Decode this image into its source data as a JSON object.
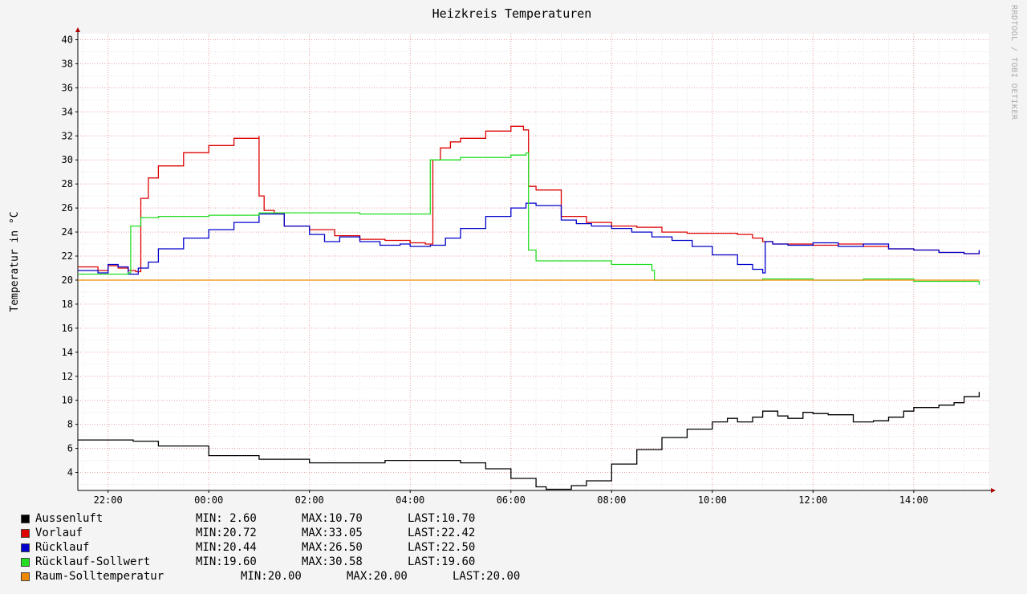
{
  "watermark": "RRDTOOL / TOBI OETIKER",
  "chart_data": {
    "type": "line",
    "title": "Heizkreis Temperaturen",
    "ylabel": "Temperatur in °C",
    "xlabel": "",
    "ylim": [
      2.5,
      40.5
    ],
    "xlim": [
      -2.6,
      15.5
    ],
    "yticks": [
      4,
      6,
      8,
      10,
      12,
      14,
      16,
      18,
      20,
      22,
      24,
      26,
      28,
      30,
      32,
      34,
      36,
      38,
      40
    ],
    "ytick_labels": [
      "4",
      "6",
      "8",
      "10",
      "12",
      "14",
      "16",
      "18",
      "20",
      "22",
      "24",
      "26",
      "28",
      "30",
      "32",
      "34",
      "36",
      "38",
      "40"
    ],
    "xticks": [
      -2,
      0,
      2,
      4,
      6,
      8,
      10,
      12,
      14
    ],
    "xtick_labels": [
      "22:00",
      "00:00",
      "02:00",
      "04:00",
      "06:00",
      "08:00",
      "10:00",
      "12:00",
      "14:00"
    ],
    "x_unit": "hours relative to 00:00",
    "grid": true,
    "legend_position": "bottom-left",
    "series": [
      {
        "name": "Aussenluft",
        "color": "#000000",
        "min": " 2.60",
        "max": "10.70",
        "last": "10.70",
        "x": [
          -2.6,
          -1.5,
          -1.0,
          0.0,
          1.0,
          2.0,
          3.0,
          3.5,
          4.0,
          4.6,
          5.0,
          5.5,
          6.0,
          6.5,
          6.7,
          7.2,
          7.5,
          8.0,
          8.5,
          9.0,
          9.5,
          10.0,
          10.3,
          10.5,
          10.8,
          11.0,
          11.3,
          11.5,
          11.8,
          12.0,
          12.3,
          12.8,
          13.2,
          13.5,
          13.8,
          14.0,
          14.5,
          14.8,
          15.0,
          15.3
        ],
        "y": [
          6.7,
          6.6,
          6.2,
          5.4,
          5.1,
          4.8,
          4.8,
          5.0,
          5.0,
          5.0,
          4.8,
          4.3,
          3.5,
          2.8,
          2.6,
          2.9,
          3.3,
          4.7,
          5.9,
          6.9,
          7.6,
          8.2,
          8.5,
          8.2,
          8.6,
          9.1,
          8.7,
          8.5,
          9.0,
          8.9,
          8.8,
          8.2,
          8.3,
          8.6,
          9.1,
          9.4,
          9.6,
          9.8,
          10.3,
          10.7
        ]
      },
      {
        "name": "Vorlauf",
        "color": "#dd0000",
        "min": "20.72",
        "max": "33.05",
        "last": "22.42",
        "x": [
          -2.6,
          -2.2,
          -2.0,
          -1.8,
          -1.6,
          -1.45,
          -1.35,
          -1.2,
          -1.0,
          -0.5,
          0.0,
          0.5,
          1.0,
          1.0,
          1.1,
          1.3,
          1.5,
          2.0,
          2.5,
          3.0,
          3.5,
          4.0,
          4.3,
          4.45,
          4.6,
          4.8,
          5.0,
          5.5,
          6.0,
          6.25,
          6.35,
          6.5,
          7.0,
          7.5,
          8.0,
          8.5,
          9.0,
          9.5,
          10.0,
          10.5,
          10.8,
          11.0,
          11.2,
          11.5,
          12.0,
          12.5,
          13.0,
          13.5,
          14.0,
          14.5,
          15.0,
          15.3
        ],
        "y": [
          21.1,
          20.8,
          21.2,
          21.0,
          20.8,
          20.7,
          26.8,
          28.5,
          29.5,
          30.6,
          31.2,
          31.8,
          32.0,
          27.0,
          25.8,
          25.6,
          24.5,
          24.2,
          23.7,
          23.4,
          23.3,
          23.1,
          23.0,
          30.0,
          31.0,
          31.5,
          31.8,
          32.4,
          32.8,
          32.5,
          27.8,
          27.5,
          25.3,
          24.8,
          24.5,
          24.4,
          24.0,
          23.9,
          23.9,
          23.8,
          23.5,
          23.2,
          23.0,
          23.0,
          22.9,
          23.0,
          22.8,
          22.6,
          22.5,
          22.3,
          22.2,
          22.4
        ]
      },
      {
        "name": "Rücklauf",
        "color": "#0000cc",
        "min": "20.44",
        "max": "26.50",
        "last": "22.50",
        "x": [
          -2.6,
          -2.2,
          -2.0,
          -1.8,
          -1.6,
          -1.4,
          -1.2,
          -1.0,
          -0.5,
          0.0,
          0.5,
          1.0,
          1.5,
          2.0,
          2.3,
          2.6,
          3.0,
          3.4,
          3.8,
          4.0,
          4.4,
          4.7,
          5.0,
          5.5,
          6.0,
          6.3,
          6.5,
          7.0,
          7.3,
          7.6,
          8.0,
          8.4,
          8.8,
          9.2,
          9.6,
          10.0,
          10.5,
          10.8,
          11.0,
          11.05,
          11.2,
          11.5,
          12.0,
          12.5,
          13.0,
          13.5,
          14.0,
          14.5,
          15.0,
          15.3
        ],
        "y": [
          20.8,
          20.6,
          21.3,
          21.1,
          20.5,
          21.0,
          21.5,
          22.6,
          23.5,
          24.2,
          24.8,
          25.5,
          24.5,
          23.8,
          23.2,
          23.6,
          23.2,
          22.9,
          23.0,
          22.8,
          22.9,
          23.5,
          24.3,
          25.3,
          26.0,
          26.4,
          26.2,
          25.0,
          24.7,
          24.5,
          24.3,
          24.0,
          23.6,
          23.3,
          22.8,
          22.1,
          21.3,
          20.9,
          20.6,
          23.2,
          23.0,
          22.9,
          23.1,
          22.8,
          23.0,
          22.6,
          22.5,
          22.3,
          22.2,
          22.5
        ]
      },
      {
        "name": "Rücklauf-Sollwert",
        "color": "#22dd22",
        "min": "19.60",
        "max": "30.58",
        "last": "19.60",
        "x": [
          -2.6,
          -1.6,
          -1.55,
          -1.35,
          -1.0,
          0.0,
          1.0,
          2.0,
          3.0,
          4.0,
          4.35,
          4.4,
          5.0,
          6.0,
          6.3,
          6.35,
          6.5,
          7.0,
          8.0,
          8.8,
          8.85,
          9.0,
          10.0,
          11.0,
          12.0,
          13.0,
          13.5,
          14.0,
          15.3
        ],
        "y": [
          20.5,
          20.6,
          24.5,
          25.2,
          25.3,
          25.4,
          25.6,
          25.6,
          25.5,
          25.5,
          25.5,
          30.0,
          30.2,
          30.4,
          30.58,
          22.5,
          21.6,
          21.6,
          21.3,
          20.8,
          20.0,
          20.0,
          20.0,
          20.1,
          20.0,
          20.1,
          20.1,
          19.9,
          19.6
        ]
      },
      {
        "name": "Raum-Solltemperatur",
        "color": "#ee8800",
        "min": "20.00",
        "max": "20.00",
        "last": "20.00",
        "x": [
          -2.6,
          15.3
        ],
        "y": [
          20.0,
          20.0
        ]
      }
    ]
  }
}
